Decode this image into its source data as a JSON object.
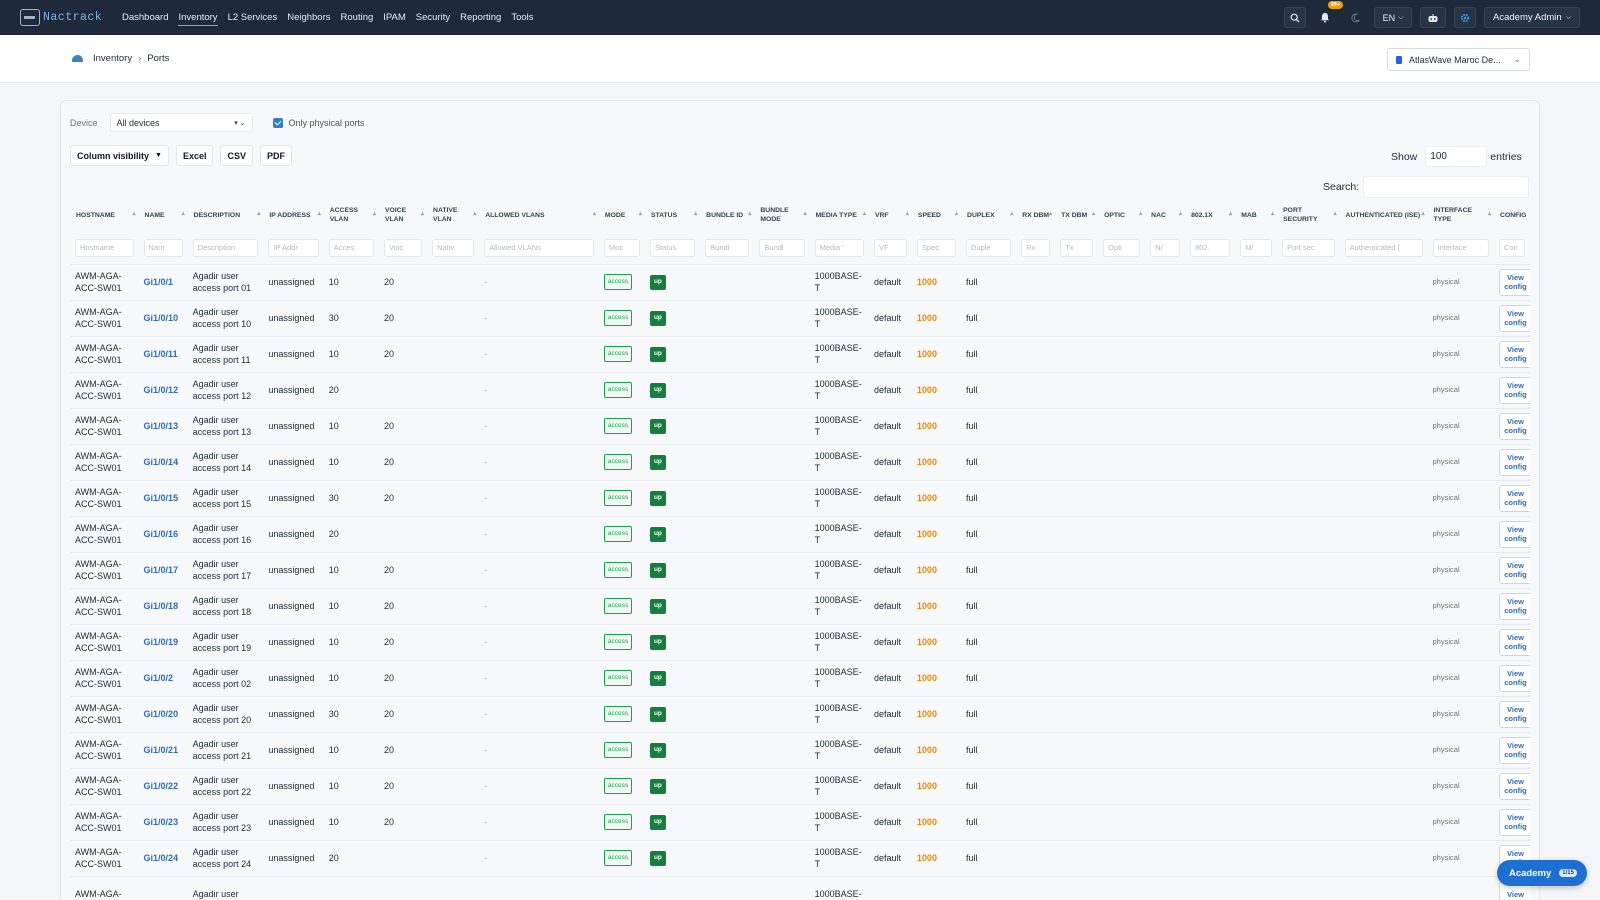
{
  "app": {
    "name": "Nactrack"
  },
  "nav": {
    "items": [
      {
        "label": "Dashboard",
        "active": false
      },
      {
        "label": "Inventory",
        "active": true
      },
      {
        "label": "L2 Services",
        "active": false
      },
      {
        "label": "Neighbors",
        "active": false
      },
      {
        "label": "Routing",
        "active": false
      },
      {
        "label": "IPAM",
        "active": false
      },
      {
        "label": "Security",
        "active": false
      },
      {
        "label": "Reporting",
        "active": false
      },
      {
        "label": "Tools",
        "active": false
      }
    ],
    "notif_badge": "99+",
    "lang": "EN",
    "user": "Academy Admin"
  },
  "breadcrumb": {
    "root": "Inventory",
    "current": "Ports"
  },
  "tenant": {
    "label": "AtlasWave Maroc De..."
  },
  "filters": {
    "device_label": "Device",
    "device_value": "All devices",
    "physical_label": "Only physical ports",
    "physical_checked": true
  },
  "toolbar": {
    "colvis": "Column visibility",
    "excel": "Excel",
    "csv": "CSV",
    "pdf": "PDF"
  },
  "show": {
    "label": "Show",
    "value": "100",
    "suffix": "entries"
  },
  "search": {
    "label": "Search:"
  },
  "table": {
    "columns": [
      {
        "label": "Hostname",
        "placeholder": "Hostname"
      },
      {
        "label": "Name",
        "placeholder": "Nam"
      },
      {
        "label": "Description",
        "placeholder": "Description"
      },
      {
        "label": "IP Address",
        "placeholder": "IP Addr"
      },
      {
        "label": "Access VLAN",
        "placeholder": "Acces"
      },
      {
        "label": "Voice VLAN",
        "placeholder": "Voic"
      },
      {
        "label": "Native VLAN",
        "placeholder": "Nativ"
      },
      {
        "label": "Allowed VLANs",
        "placeholder": "Allowed VLANs"
      },
      {
        "label": "Mode",
        "placeholder": "Moc"
      },
      {
        "label": "Status",
        "placeholder": "Status"
      },
      {
        "label": "Bundle ID",
        "placeholder": "Bundl"
      },
      {
        "label": "Bundle Mode",
        "placeholder": "Bundl"
      },
      {
        "label": "Media Type",
        "placeholder": "Media '"
      },
      {
        "label": "VRF",
        "placeholder": "VF"
      },
      {
        "label": "Speed",
        "placeholder": "Spec"
      },
      {
        "label": "Duplex",
        "placeholder": "Duple"
      },
      {
        "label": "RX dBm",
        "placeholder": "Rx"
      },
      {
        "label": "TX dBm",
        "placeholder": "Tx"
      },
      {
        "label": "Optic",
        "placeholder": "Opti"
      },
      {
        "label": "NAC",
        "placeholder": "N/"
      },
      {
        "label": "802.1X",
        "placeholder": "802."
      },
      {
        "label": "MAB",
        "placeholder": "M/"
      },
      {
        "label": "Port Security",
        "placeholder": "Port sec"
      },
      {
        "label": "Authenticated (ISE)",
        "placeholder": "Authenticated ("
      },
      {
        "label": "Interface Type",
        "placeholder": "Interface"
      },
      {
        "label": "Config",
        "placeholder": "Con"
      }
    ],
    "rows": [
      {
        "hostname": "AWM-AGA-ACC-SW01",
        "name": "Gi1/0/1",
        "description": "Agadir user access port 01",
        "ip": "unassigned",
        "access_vlan": "10",
        "voice_vlan": "20",
        "allowed": "-",
        "mode": "access",
        "status": "up",
        "media": "1000BASE-T",
        "vrf": "default",
        "speed": "1000",
        "duplex": "full",
        "iftype": "physical",
        "config": "View config"
      },
      {
        "hostname": "AWM-AGA-ACC-SW01",
        "name": "Gi1/0/10",
        "description": "Agadir user access port 10",
        "ip": "unassigned",
        "access_vlan": "30",
        "voice_vlan": "20",
        "allowed": "-",
        "mode": "access",
        "status": "up",
        "media": "1000BASE-T",
        "vrf": "default",
        "speed": "1000",
        "duplex": "full",
        "iftype": "physical",
        "config": "View config"
      },
      {
        "hostname": "AWM-AGA-ACC-SW01",
        "name": "Gi1/0/11",
        "description": "Agadir user access port 11",
        "ip": "unassigned",
        "access_vlan": "10",
        "voice_vlan": "20",
        "allowed": "-",
        "mode": "access",
        "status": "up",
        "media": "1000BASE-T",
        "vrf": "default",
        "speed": "1000",
        "duplex": "full",
        "iftype": "physical",
        "config": "View config"
      },
      {
        "hostname": "AWM-AGA-ACC-SW01",
        "name": "Gi1/0/12",
        "description": "Agadir user access port 12",
        "ip": "unassigned",
        "access_vlan": "20",
        "voice_vlan": "",
        "allowed": "-",
        "mode": "access",
        "status": "up",
        "media": "1000BASE-T",
        "vrf": "default",
        "speed": "1000",
        "duplex": "full",
        "iftype": "physical",
        "config": "View config"
      },
      {
        "hostname": "AWM-AGA-ACC-SW01",
        "name": "Gi1/0/13",
        "description": "Agadir user access port 13",
        "ip": "unassigned",
        "access_vlan": "10",
        "voice_vlan": "20",
        "allowed": "-",
        "mode": "access",
        "status": "up",
        "media": "1000BASE-T",
        "vrf": "default",
        "speed": "1000",
        "duplex": "full",
        "iftype": "physical",
        "config": "View config"
      },
      {
        "hostname": "AWM-AGA-ACC-SW01",
        "name": "Gi1/0/14",
        "description": "Agadir user access port 14",
        "ip": "unassigned",
        "access_vlan": "10",
        "voice_vlan": "20",
        "allowed": "-",
        "mode": "access",
        "status": "up",
        "media": "1000BASE-T",
        "vrf": "default",
        "speed": "1000",
        "duplex": "full",
        "iftype": "physical",
        "config": "View config"
      },
      {
        "hostname": "AWM-AGA-ACC-SW01",
        "name": "Gi1/0/15",
        "description": "Agadir user access port 15",
        "ip": "unassigned",
        "access_vlan": "30",
        "voice_vlan": "20",
        "allowed": "-",
        "mode": "access",
        "status": "up",
        "media": "1000BASE-T",
        "vrf": "default",
        "speed": "1000",
        "duplex": "full",
        "iftype": "physical",
        "config": "View config"
      },
      {
        "hostname": "AWM-AGA-ACC-SW01",
        "name": "Gi1/0/16",
        "description": "Agadir user access port 16",
        "ip": "unassigned",
        "access_vlan": "20",
        "voice_vlan": "",
        "allowed": "-",
        "mode": "access",
        "status": "up",
        "media": "1000BASE-T",
        "vrf": "default",
        "speed": "1000",
        "duplex": "full",
        "iftype": "physical",
        "config": "View config"
      },
      {
        "hostname": "AWM-AGA-ACC-SW01",
        "name": "Gi1/0/17",
        "description": "Agadir user access port 17",
        "ip": "unassigned",
        "access_vlan": "10",
        "voice_vlan": "20",
        "allowed": "-",
        "mode": "access",
        "status": "up",
        "media": "1000BASE-T",
        "vrf": "default",
        "speed": "1000",
        "duplex": "full",
        "iftype": "physical",
        "config": "View config"
      },
      {
        "hostname": "AWM-AGA-ACC-SW01",
        "name": "Gi1/0/18",
        "description": "Agadir user access port 18",
        "ip": "unassigned",
        "access_vlan": "10",
        "voice_vlan": "20",
        "allowed": "-",
        "mode": "access",
        "status": "up",
        "media": "1000BASE-T",
        "vrf": "default",
        "speed": "1000",
        "duplex": "full",
        "iftype": "physical",
        "config": "View config"
      },
      {
        "hostname": "AWM-AGA-ACC-SW01",
        "name": "Gi1/0/19",
        "description": "Agadir user access port 19",
        "ip": "unassigned",
        "access_vlan": "10",
        "voice_vlan": "20",
        "allowed": "-",
        "mode": "access",
        "status": "up",
        "media": "1000BASE-T",
        "vrf": "default",
        "speed": "1000",
        "duplex": "full",
        "iftype": "physical",
        "config": "View config"
      },
      {
        "hostname": "AWM-AGA-ACC-SW01",
        "name": "Gi1/0/2",
        "description": "Agadir user access port 02",
        "ip": "unassigned",
        "access_vlan": "10",
        "voice_vlan": "20",
        "allowed": "-",
        "mode": "access",
        "status": "up",
        "media": "1000BASE-T",
        "vrf": "default",
        "speed": "1000",
        "duplex": "full",
        "iftype": "physical",
        "config": "View config"
      },
      {
        "hostname": "AWM-AGA-ACC-SW01",
        "name": "Gi1/0/20",
        "description": "Agadir user access port 20",
        "ip": "unassigned",
        "access_vlan": "30",
        "voice_vlan": "20",
        "allowed": "-",
        "mode": "access",
        "status": "up",
        "media": "1000BASE-T",
        "vrf": "default",
        "speed": "1000",
        "duplex": "full",
        "iftype": "physical",
        "config": "View config"
      },
      {
        "hostname": "AWM-AGA-ACC-SW01",
        "name": "Gi1/0/21",
        "description": "Agadir user access port 21",
        "ip": "unassigned",
        "access_vlan": "10",
        "voice_vlan": "20",
        "allowed": "-",
        "mode": "access",
        "status": "up",
        "media": "1000BASE-T",
        "vrf": "default",
        "speed": "1000",
        "duplex": "full",
        "iftype": "physical",
        "config": "View config"
      },
      {
        "hostname": "AWM-AGA-ACC-SW01",
        "name": "Gi1/0/22",
        "description": "Agadir user access port 22",
        "ip": "unassigned",
        "access_vlan": "10",
        "voice_vlan": "20",
        "allowed": "-",
        "mode": "access",
        "status": "up",
        "media": "1000BASE-T",
        "vrf": "default",
        "speed": "1000",
        "duplex": "full",
        "iftype": "physical",
        "config": "View config"
      },
      {
        "hostname": "AWM-AGA-ACC-SW01",
        "name": "Gi1/0/23",
        "description": "Agadir user access port 23",
        "ip": "unassigned",
        "access_vlan": "10",
        "voice_vlan": "20",
        "allowed": "-",
        "mode": "access",
        "status": "up",
        "media": "1000BASE-T",
        "vrf": "default",
        "speed": "1000",
        "duplex": "full",
        "iftype": "physical",
        "config": "View config"
      },
      {
        "hostname": "AWM-AGA-ACC-SW01",
        "name": "Gi1/0/24",
        "description": "Agadir user access port 24",
        "ip": "unassigned",
        "access_vlan": "20",
        "voice_vlan": "",
        "allowed": "-",
        "mode": "access",
        "status": "up",
        "media": "1000BASE-T",
        "vrf": "default",
        "speed": "1000",
        "duplex": "full",
        "iftype": "physical",
        "config": "View config"
      },
      {
        "hostname": "AWM-AGA-",
        "name": "",
        "description": "Agadir user",
        "ip": "",
        "access_vlan": "",
        "voice_vlan": "",
        "allowed": "",
        "mode": "",
        "status": "",
        "media": "1000BASE-",
        "vrf": "",
        "speed": "",
        "duplex": "",
        "iftype": "",
        "config": "View"
      }
    ]
  },
  "academy": {
    "label": "Academy",
    "count": "1/15"
  },
  "colors": {
    "nav_bg": "#1e2a3a",
    "link": "#2f6db3",
    "speed": "#e9890c",
    "status_up": "#15803d",
    "mode_access": "#16a34a",
    "academy": "#1d6fd1"
  }
}
